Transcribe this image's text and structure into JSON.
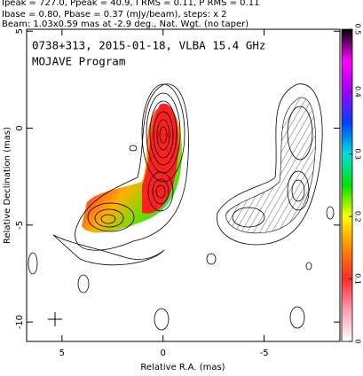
{
  "header": [
    "Ipeak = 727.0, Ppeak = 40.9, I RMS = 0.11, P RMS = 0.11",
    "Ibase = 0.80, Pbase = 0.37 (mJy/beam), steps: x 2",
    "Beam: 1.03x0.59 mas at -2.9 deg., Nat. Wgt. (no taper)"
  ],
  "chart_data": {
    "type": "contour",
    "title": "0738+313, 2015-01-18, VLBA 15.4 GHz",
    "subtitle": "MOJAVE Program",
    "x_label": "Relative R.A. (mas)",
    "y_label": "Relative Declination (mas)",
    "xlim": [
      6.75,
      -8.75
    ],
    "xticks": [
      5,
      0,
      -5
    ],
    "ylim": [
      5.1,
      -11
    ],
    "yticks": [
      5,
      0,
      -5,
      -10
    ],
    "colorbar": {
      "lim": [
        0,
        0.5
      ],
      "ticks": [
        0,
        0.1,
        0.2,
        0.3,
        0.4,
        0.5
      ],
      "colors": [
        "#ffffff",
        "#ff9fb0",
        "#ff2a2a",
        "#ff8a00",
        "#ffff00",
        "#00e000",
        "#00e0e0",
        "#0040ff",
        "#a000ff",
        "#ff00ff",
        "#000000"
      ]
    }
  }
}
